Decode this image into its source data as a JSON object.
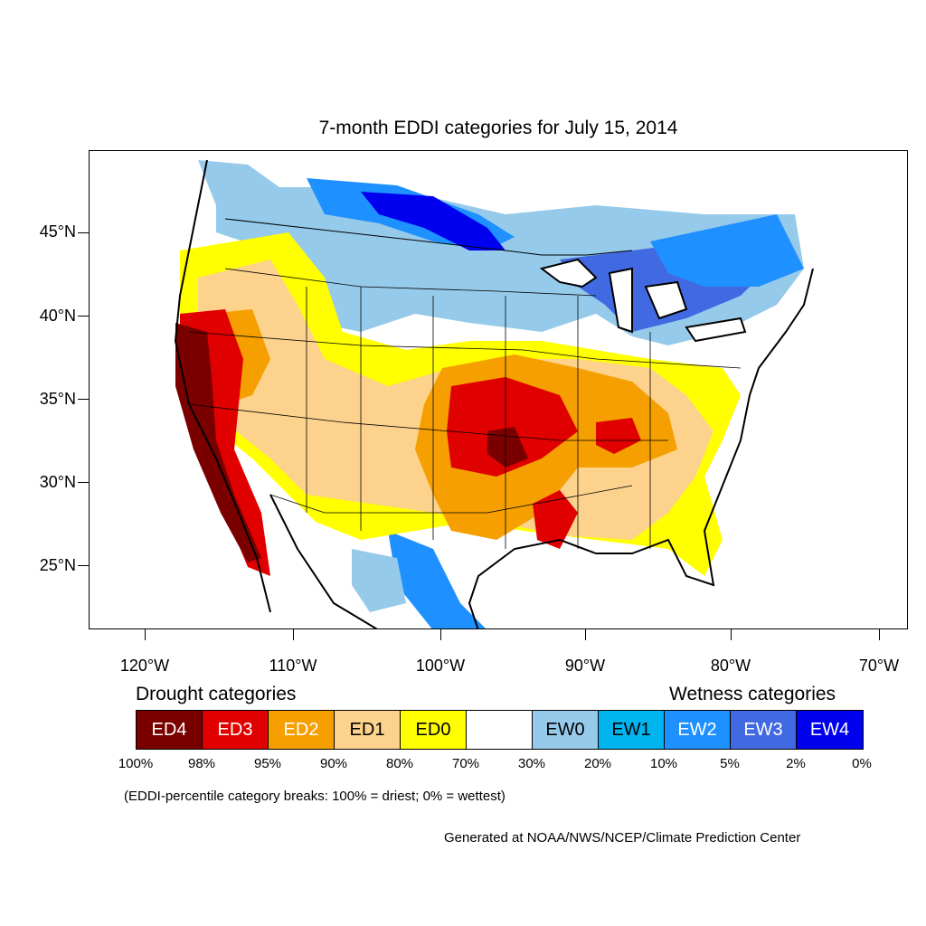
{
  "title": "7-month EDDI categories for July 15, 2014",
  "map": {
    "latitude_labels": [
      "45°N",
      "40°N",
      "35°N",
      "30°N",
      "25°N"
    ],
    "longitude_labels": [
      "120°W",
      "110°W",
      "100°W",
      "90°W",
      "80°W",
      "70°W"
    ],
    "colors": {
      "ED4": "#7a0000",
      "ED3": "#e00000",
      "ED2": "#f5a000",
      "ED1": "#fcd28c",
      "ED0": "#ffff00",
      "neutral": "#ffffff",
      "EW0": "#96caeb",
      "EW1": "#00b4f0",
      "EW2": "#1e90ff",
      "EW3": "#4169e1",
      "EW4": "#0000ee"
    }
  },
  "legend": {
    "drought_heading": "Drought categories",
    "wetness_heading": "Wetness categories",
    "boxes": [
      {
        "label": "ED4",
        "color": "#7a0000",
        "text_color": "#ffffff"
      },
      {
        "label": "ED3",
        "color": "#e00000",
        "text_color": "#ffffff"
      },
      {
        "label": "ED2",
        "color": "#f5a000",
        "text_color": "#ffffff"
      },
      {
        "label": "ED1",
        "color": "#fcd28c",
        "text_color": "#000000"
      },
      {
        "label": "ED0",
        "color": "#ffff00",
        "text_color": "#000000"
      },
      {
        "label": "",
        "color": "#ffffff",
        "text_color": "#000000"
      },
      {
        "label": "EW0",
        "color": "#96caeb",
        "text_color": "#000000"
      },
      {
        "label": "EW1",
        "color": "#00b4f0",
        "text_color": "#000000"
      },
      {
        "label": "EW2",
        "color": "#1e90ff",
        "text_color": "#ffffff"
      },
      {
        "label": "EW3",
        "color": "#4169e1",
        "text_color": "#ffffff"
      },
      {
        "label": "EW4",
        "color": "#0000ee",
        "text_color": "#ffffff"
      }
    ],
    "percent_breaks": [
      "100%",
      "98%",
      "95%",
      "90%",
      "80%",
      "70%",
      "30%",
      "20%",
      "10%",
      "5%",
      "2%",
      "0%"
    ],
    "note": "(EDDI-percentile category breaks: 100% = driest; 0% = wettest)"
  },
  "credit": "Generated at NOAA/NWS/NCEP/Climate Prediction Center"
}
